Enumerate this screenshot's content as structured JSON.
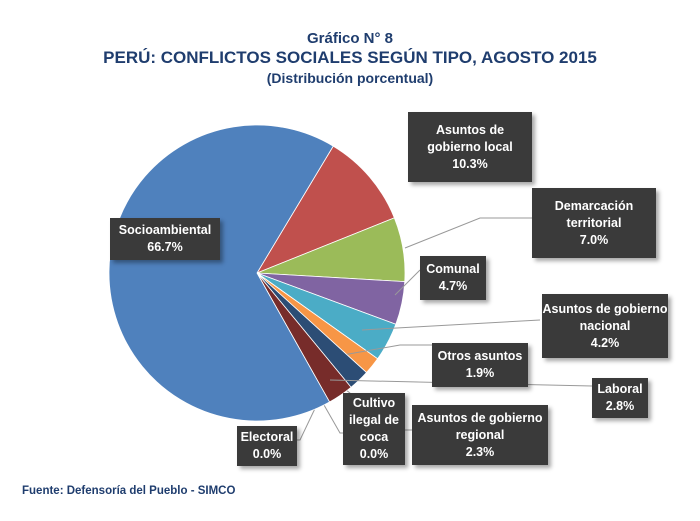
{
  "chart_data": {
    "type": "pie",
    "kicker": "Gráfico N° 8",
    "title": "PERÚ: CONFLICTOS SOCIALES SEGÚN TIPO, AGOSTO 2015",
    "subtitle": "(Distribución porcentual)",
    "source": "Fuente: Defensoría del Pueblo - SIMCO",
    "slices": [
      {
        "label": "Asuntos de gobierno local",
        "value": 10.3,
        "value_label": "10.3%",
        "color": "#c0504d"
      },
      {
        "label": "Demarcación territorial",
        "value": 7.0,
        "value_label": "7.0%",
        "color": "#9bbb59"
      },
      {
        "label": "Comunal",
        "value": 4.7,
        "value_label": "4.7%",
        "color": "#8064a2"
      },
      {
        "label": "Asuntos de gobierno nacional",
        "value": 4.2,
        "value_label": "4.2%",
        "color": "#4bacc6"
      },
      {
        "label": "Otros asuntos",
        "value": 1.9,
        "value_label": "1.9%",
        "color": "#f79646"
      },
      {
        "label": "Asuntos de gobierno regional",
        "value": 2.3,
        "value_label": "2.3%",
        "color": "#2c4d75"
      },
      {
        "label": "Laboral",
        "value": 2.8,
        "value_label": "2.8%",
        "color": "#772c2a"
      },
      {
        "label": "Cultivo ilegal de coca",
        "value": 0.0,
        "value_label": "0.0%",
        "color": "#5f7530"
      },
      {
        "label": "Electoral",
        "value": 0.0,
        "value_label": "0.0%",
        "color": "#4d3b62"
      },
      {
        "label": "Socioambiental",
        "value": 66.7,
        "value_label": "66.7%",
        "color": "#4f81bd"
      }
    ]
  }
}
